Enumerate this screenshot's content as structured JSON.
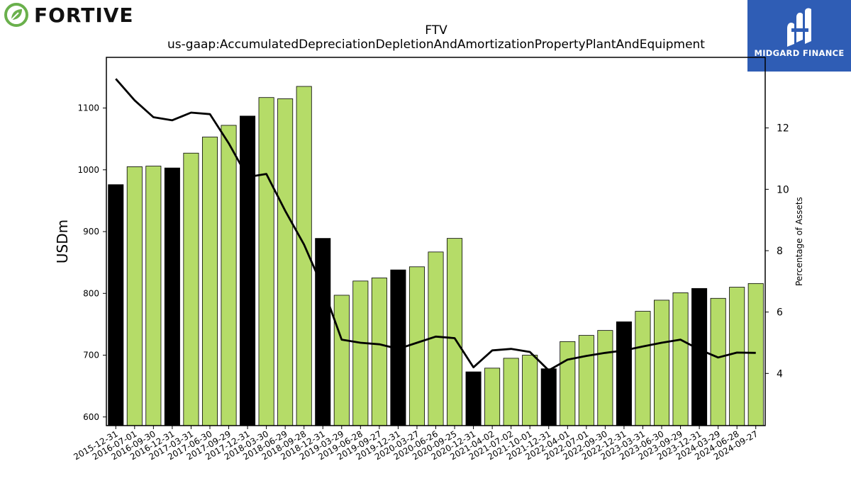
{
  "company": {
    "name": "FORTIVE",
    "logo_icon": "fortive-leaf-icon",
    "brand_color": "#6ab04c"
  },
  "publisher": {
    "name": "MIDGARD FINANCE",
    "logo_icon": "midgard-mark-icon",
    "bg_color": "#2f5db5"
  },
  "chart_data": {
    "type": "bar",
    "title": "FTV",
    "subtitle": "us-gaap:AccumulatedDepreciationDepletionAndAmortizationPropertyPlantAndEquipment",
    "ylabel": "USDm",
    "ylabel_right": "Percentage of Assets",
    "ylim": [
      586,
      1182
    ],
    "ylim_right": [
      2.3,
      14.3
    ],
    "yticks": [
      600,
      700,
      800,
      900,
      1000,
      1100
    ],
    "yticks_right": [
      4,
      6,
      8,
      10,
      12
    ],
    "grid": false,
    "colors": {
      "annual": "#000000",
      "quarterly": "#b5dc68",
      "line": "#000000"
    },
    "categories": [
      "2015-12-31",
      "2016-07-01",
      "2016-09-30",
      "2016-12-31",
      "2017-03-31",
      "2017-06-30",
      "2017-09-29",
      "2017-12-31",
      "2018-03-30",
      "2018-06-29",
      "2018-09-28",
      "2018-12-31",
      "2019-03-29",
      "2019-06-28",
      "2019-09-27",
      "2019-12-31",
      "2020-03-27",
      "2020-06-26",
      "2020-09-25",
      "2020-12-31",
      "2021-04-02",
      "2021-07-02",
      "2021-10-01",
      "2021-12-31",
      "2022-04-01",
      "2022-07-01",
      "2022-09-30",
      "2022-12-31",
      "2023-03-31",
      "2023-06-30",
      "2023-09-29",
      "2023-12-31",
      "2024-03-29",
      "2024-06-28",
      "2024-09-27"
    ],
    "series": [
      {
        "kind": "bar",
        "values": [
          976,
          1005,
          1006,
          1003,
          1027,
          1053,
          1072,
          1087,
          1117,
          1115,
          1135,
          889,
          797,
          820,
          825,
          838,
          843,
          867,
          889,
          673,
          679,
          695,
          700,
          678,
          722,
          732,
          740,
          754,
          771,
          789,
          801,
          808,
          792,
          810,
          816
        ],
        "annual": [
          true,
          false,
          false,
          true,
          false,
          false,
          false,
          true,
          false,
          false,
          false,
          true,
          false,
          false,
          false,
          true,
          false,
          false,
          false,
          true,
          false,
          false,
          false,
          true,
          false,
          false,
          false,
          true,
          false,
          false,
          false,
          true,
          false,
          false,
          false
        ]
      },
      {
        "kind": "line",
        "axis": "right",
        "values": [
          13.6,
          12.9,
          12.35,
          12.25,
          12.5,
          12.45,
          11.5,
          10.4,
          10.5,
          9.3,
          8.2,
          6.8,
          5.1,
          5.0,
          4.95,
          4.8,
          5.0,
          5.2,
          5.15,
          4.2,
          4.75,
          4.8,
          4.7,
          4.1,
          4.45,
          4.57,
          4.67,
          4.75,
          4.88,
          5.0,
          5.1,
          4.78,
          4.52,
          4.68,
          4.67
        ]
      }
    ]
  }
}
